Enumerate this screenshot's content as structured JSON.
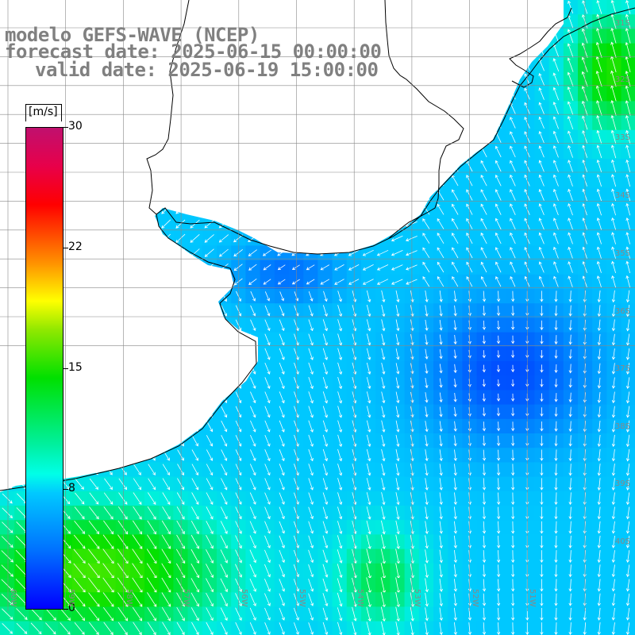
{
  "title": {
    "line1": "modelo GEFS-WAVE (NCEP)",
    "line2": "forecast date: 2025-06-15 00:00:00",
    "line3": "valid date: 2025-06-19 15:00:00"
  },
  "colorbar": {
    "units": "[m/s]",
    "ticks": [
      "30",
      "22",
      "15",
      "8",
      "0"
    ],
    "min": 0,
    "max": 30,
    "colors": [
      "#0000ff",
      "#00c8ff",
      "#00ffe8",
      "#00e000",
      "#ffff00",
      "#ff0000",
      "#c0106e"
    ]
  },
  "grid": {
    "lat_labels": [
      "31S",
      "32S",
      "33S",
      "34S",
      "35S",
      "36S",
      "37S",
      "38S",
      "39S",
      "40S"
    ],
    "lon_labels": [
      "60W",
      "59W",
      "58W",
      "57W",
      "56W",
      "55W",
      "54W",
      "53W",
      "52W",
      "51W"
    ]
  },
  "colors": {
    "land": "#ffffff",
    "coast": "#000000",
    "grid": "#888888",
    "arrow": "#ffffff"
  }
}
